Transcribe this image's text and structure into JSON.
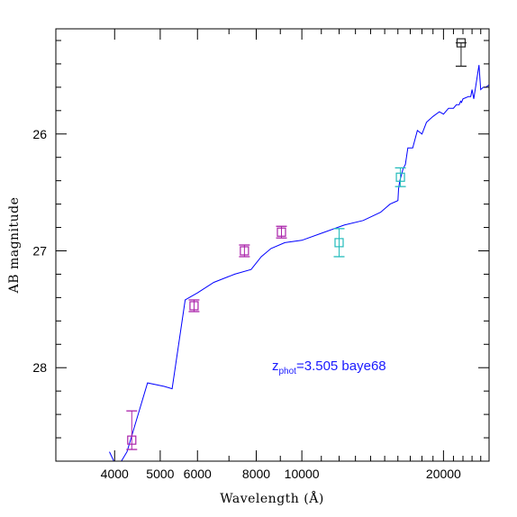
{
  "chart_data": {
    "type": "scatter",
    "title": "",
    "xlabel": "Wavelength (Å)",
    "ylabel": "AB magnitude",
    "x_scale": "log",
    "xlim": [
      3000,
      25000
    ],
    "ylim": [
      28.8,
      25.1
    ],
    "x_ticks": [
      4000,
      5000,
      6000,
      8000,
      10000,
      20000
    ],
    "y_ticks": [
      26,
      27,
      28
    ],
    "grid": false,
    "annotation": {
      "z_main": "z",
      "z_sub": "phot",
      "rest": "=3.505 baye68",
      "color": "#1a1aff"
    },
    "model_color": "#0000ff",
    "model_sed": {
      "x": [
        3900,
        4050,
        4250,
        4700,
        5100,
        5300,
        5650,
        6000,
        6500,
        7200,
        7800,
        8200,
        8600,
        9200,
        10000,
        11000,
        12300,
        13500,
        14700,
        15400,
        15800,
        16000,
        16050,
        16150,
        16280,
        16400,
        16600,
        16800,
        17200,
        17600,
        18000,
        18400,
        19000,
        19600,
        20000,
        20500,
        21000,
        21300,
        21600,
        21750,
        21850,
        22000,
        22300,
        22600,
        22850,
        23000,
        23200,
        23500,
        23800,
        24000,
        24300,
        24600,
        25000
      ],
      "y": [
        28.72,
        28.86,
        28.72,
        28.13,
        28.16,
        28.18,
        27.42,
        27.36,
        27.27,
        27.2,
        27.16,
        27.05,
        26.98,
        26.93,
        26.91,
        26.85,
        26.78,
        26.74,
        26.67,
        26.6,
        26.58,
        26.57,
        26.47,
        26.4,
        26.35,
        26.3,
        26.26,
        26.12,
        26.12,
        25.97,
        26.0,
        25.9,
        25.85,
        25.81,
        25.83,
        25.78,
        25.78,
        25.75,
        25.75,
        25.72,
        25.73,
        25.7,
        25.69,
        25.68,
        25.68,
        25.62,
        25.7,
        25.55,
        25.41,
        25.62,
        25.6,
        25.6,
        25.58
      ]
    },
    "series": [
      {
        "color": "#aa22aa",
        "points": [
          {
            "x": 4350,
            "y": 28.62,
            "err_lo": 0.25,
            "err_hi": 0.08
          },
          {
            "x": 5900,
            "y": 27.47,
            "err_lo": 0.05,
            "err_hi": 0.05
          },
          {
            "x": 7550,
            "y": 27.0,
            "err_lo": 0.05,
            "err_hi": 0.05
          },
          {
            "x": 9050,
            "y": 26.84,
            "err_lo": 0.05,
            "err_hi": 0.05
          }
        ]
      },
      {
        "color": "#22bbbb",
        "points": [
          {
            "x": 12000,
            "y": 26.93,
            "err_lo": 0.12,
            "err_hi": 0.12
          },
          {
            "x": 16200,
            "y": 26.37,
            "err_lo": 0.08,
            "err_hi": 0.08
          }
        ]
      },
      {
        "color": "#222222",
        "points": [
          {
            "x": 21800,
            "y": 25.22,
            "err_lo": 0.0,
            "err_hi": 0.2
          }
        ]
      }
    ]
  }
}
